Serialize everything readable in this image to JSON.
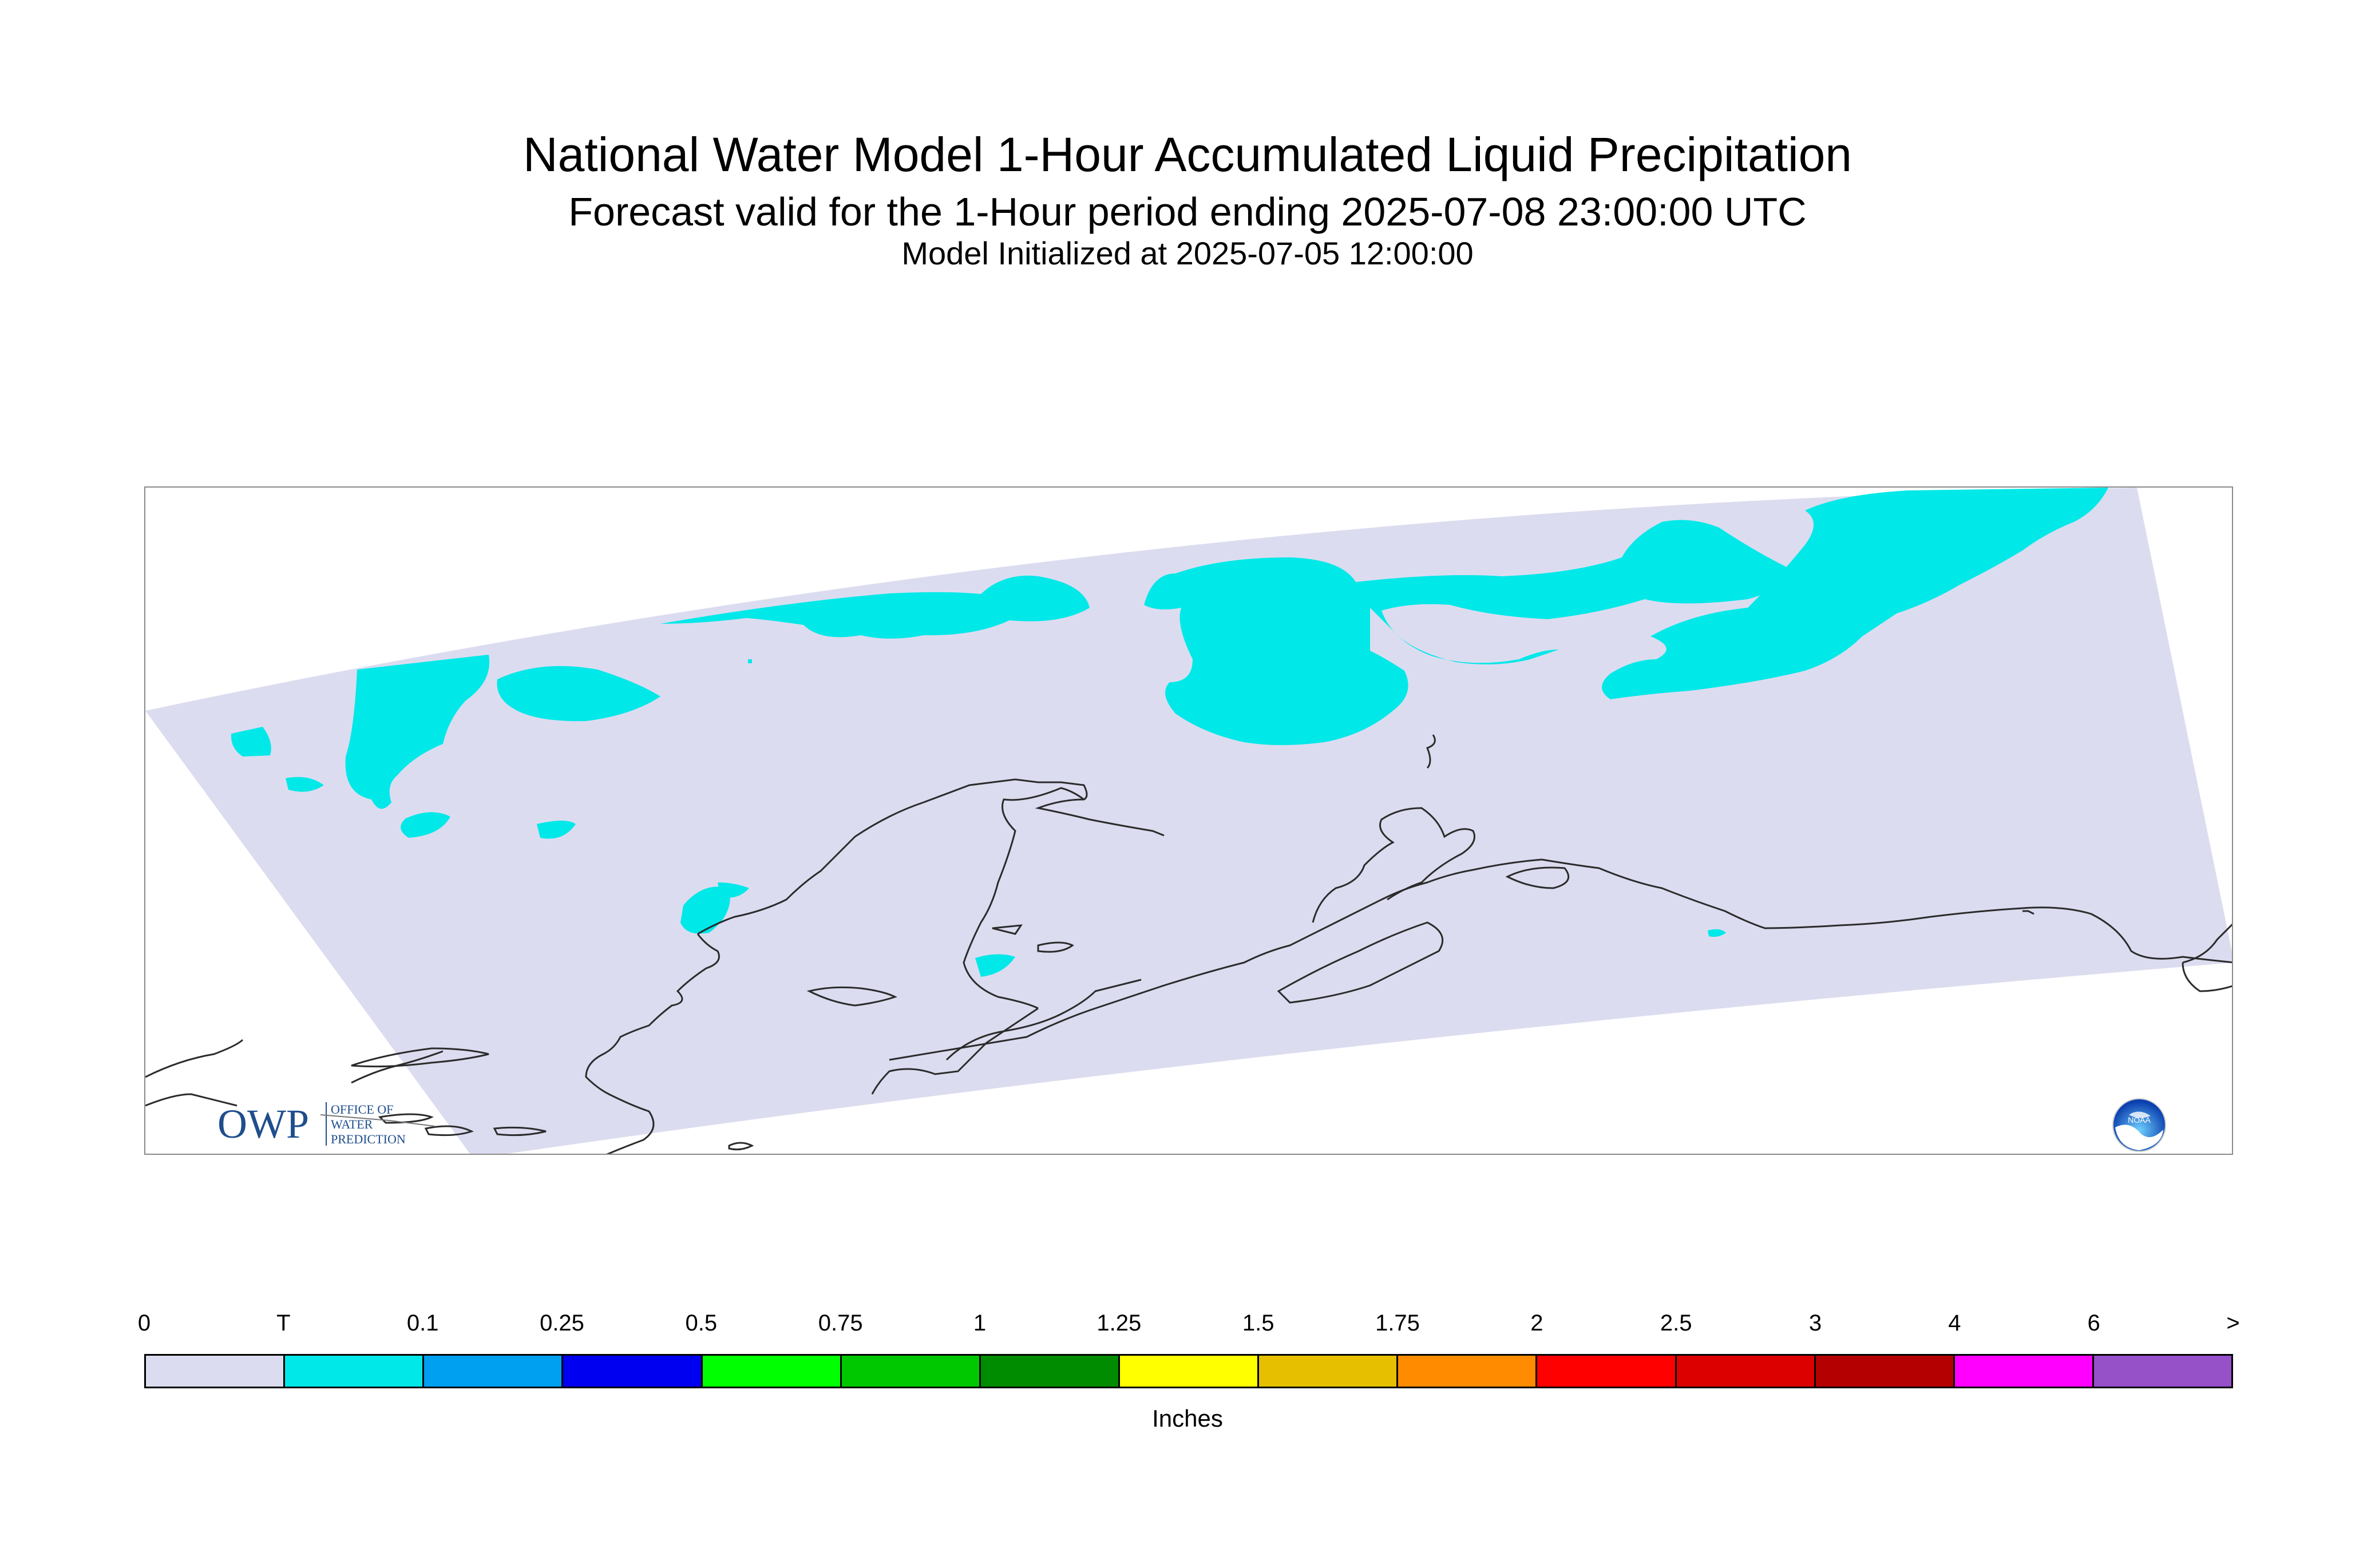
{
  "title": "National Water Model 1-Hour Accumulated Liquid Precipitation",
  "subtitle": "Forecast valid for the 1-Hour period ending 2025-07-08 23:00:00 UTC",
  "init_line": "Model Initialized at 2025-07-05 12:00:00",
  "logos": {
    "owp_letters": "OWP",
    "owp_name": [
      "OFFICE OF",
      "WATER",
      "PREDICTION"
    ],
    "noaa_letters": "NOAA"
  },
  "colors": {
    "domain": "#dcdcf0",
    "trace": "#00e8e8",
    "coastline": "#2b2b2b",
    "owp_blue": "#1f4e8c",
    "noaa_blue": "#1a5cc8"
  },
  "legend": {
    "ticks": [
      "0",
      "T",
      "0.1",
      "0.25",
      "0.5",
      "0.75",
      "1",
      "1.25",
      "1.5",
      "1.75",
      "2",
      "2.5",
      "3",
      "4",
      "6",
      ">"
    ],
    "colors": [
      "#dcdcf0",
      "#00e8e8",
      "#00a0f0",
      "#0000f0",
      "#00ff00",
      "#00c800",
      "#008c00",
      "#ffff00",
      "#e6c000",
      "#ff8c00",
      "#ff0000",
      "#dc0000",
      "#b40000",
      "#ff00ff",
      "#9650c8"
    ],
    "units": "Inches"
  }
}
